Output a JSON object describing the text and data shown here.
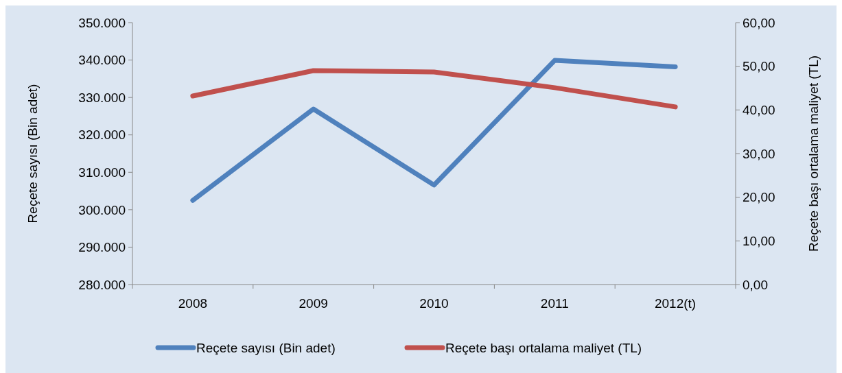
{
  "chart_data": {
    "type": "line",
    "categories": [
      "2008",
      "2009",
      "2010",
      "2011",
      "2012(t)"
    ],
    "series": [
      {
        "name": "Reçete sayısı (Bin adet)",
        "color": "#4f81bd",
        "values": [
          302500,
          326900,
          306600,
          339900,
          338200
        ]
      },
      {
        "name": "Reçete başı ortalama maliyet (TL)",
        "color": "#c0504d",
        "axis": "y2",
        "values": [
          43.2,
          49.0,
          48.7,
          45.1,
          40.7
        ]
      }
    ],
    "ylabel": "Reçete sayısı (Bin adet)",
    "y2label": "Reçete başı ortalama maliyet (TL)",
    "ylim": [
      280000,
      350000
    ],
    "yticks": [
      {
        "value": 280000,
        "label": "280.000"
      },
      {
        "value": 290000,
        "label": "290.000"
      },
      {
        "value": 300000,
        "label": "300.000"
      },
      {
        "value": 310000,
        "label": "310.000"
      },
      {
        "value": 320000,
        "label": "320.000"
      },
      {
        "value": 330000,
        "label": "330.000"
      },
      {
        "value": 340000,
        "label": "340.000"
      },
      {
        "value": 350000,
        "label": "350.000"
      }
    ],
    "y2lim": [
      0,
      60
    ],
    "y2ticks": [
      {
        "value": 0,
        "label": "0,00"
      },
      {
        "value": 10,
        "label": "10,00"
      },
      {
        "value": 20,
        "label": "20,00"
      },
      {
        "value": 30,
        "label": "30,00"
      },
      {
        "value": 40,
        "label": "40,00"
      },
      {
        "value": 50,
        "label": "50,00"
      },
      {
        "value": 60,
        "label": "60,00"
      }
    ],
    "legend": "bottom",
    "grid": false,
    "marker": "none",
    "line_style": "solid"
  }
}
